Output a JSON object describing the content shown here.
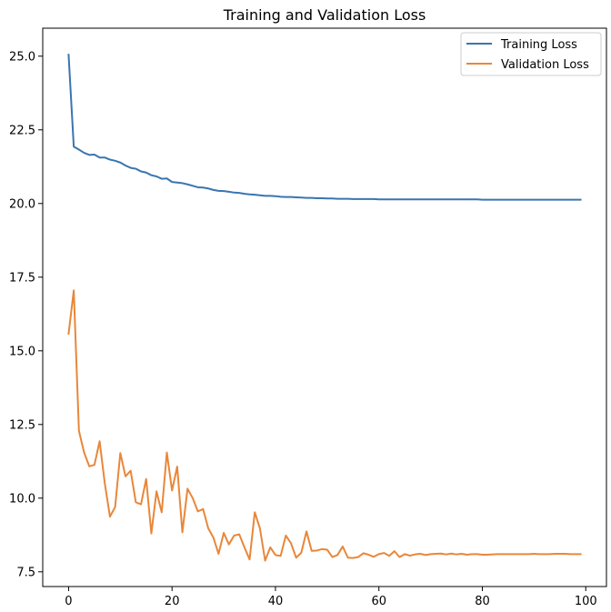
{
  "chart_data": {
    "type": "line",
    "title": "Training and Validation Loss",
    "xlabel": "",
    "ylabel": "",
    "xlim": [
      -5,
      104
    ],
    "ylim": [
      7.0,
      25.95
    ],
    "x_ticks": [
      0,
      20,
      40,
      60,
      80,
      100
    ],
    "y_ticks": [
      7.5,
      10.0,
      12.5,
      15.0,
      17.5,
      20.0,
      22.5,
      25.0
    ],
    "x_tick_labels": [
      "0",
      "20",
      "40",
      "60",
      "80",
      "100"
    ],
    "y_tick_labels": [
      "7.5",
      "10.0",
      "12.5",
      "15.0",
      "17.5",
      "20.0",
      "22.5",
      "25.0"
    ],
    "grid": false,
    "legend_position": "top-right",
    "x": [
      0,
      1,
      2,
      3,
      4,
      5,
      6,
      7,
      8,
      9,
      10,
      11,
      12,
      13,
      14,
      15,
      16,
      17,
      18,
      19,
      20,
      21,
      22,
      23,
      24,
      25,
      26,
      27,
      28,
      29,
      30,
      31,
      32,
      33,
      34,
      35,
      36,
      37,
      38,
      39,
      40,
      41,
      42,
      43,
      44,
      45,
      46,
      47,
      48,
      49,
      50,
      51,
      52,
      53,
      54,
      55,
      56,
      57,
      58,
      59,
      60,
      61,
      62,
      63,
      64,
      65,
      66,
      67,
      68,
      69,
      70,
      71,
      72,
      73,
      74,
      75,
      76,
      77,
      78,
      79,
      80,
      81,
      82,
      83,
      84,
      85,
      86,
      87,
      88,
      89,
      90,
      91,
      92,
      93,
      94,
      95,
      96,
      97,
      98,
      99
    ],
    "series": [
      {
        "name": "Training Loss",
        "color": "#3a75af",
        "values": [
          25.05,
          21.93,
          21.83,
          21.72,
          21.65,
          21.66,
          21.56,
          21.56,
          21.49,
          21.45,
          21.39,
          21.29,
          21.21,
          21.18,
          21.09,
          21.05,
          20.96,
          20.92,
          20.84,
          20.85,
          20.73,
          20.71,
          20.69,
          20.65,
          20.6,
          20.55,
          20.54,
          20.51,
          20.46,
          20.43,
          20.42,
          20.4,
          20.37,
          20.36,
          20.33,
          20.31,
          20.3,
          20.28,
          20.26,
          20.26,
          20.25,
          20.23,
          20.22,
          20.22,
          20.21,
          20.2,
          20.19,
          20.19,
          20.18,
          20.18,
          20.17,
          20.17,
          20.16,
          20.16,
          20.16,
          20.15,
          20.15,
          20.15,
          20.15,
          20.15,
          20.14,
          20.14,
          20.14,
          20.14,
          20.14,
          20.14,
          20.14,
          20.14,
          20.14,
          20.14,
          20.14,
          20.14,
          20.14,
          20.14,
          20.14,
          20.14,
          20.14,
          20.14,
          20.14,
          20.14,
          20.13,
          20.13,
          20.13,
          20.13,
          20.13,
          20.13,
          20.13,
          20.13,
          20.13,
          20.13,
          20.13,
          20.13,
          20.13,
          20.13,
          20.13,
          20.13,
          20.13,
          20.13,
          20.13,
          20.13
        ]
      },
      {
        "name": "Validation Loss",
        "color": "#e8873a",
        "values": [
          15.58,
          17.05,
          12.28,
          11.55,
          11.08,
          11.13,
          11.93,
          10.5,
          9.37,
          9.7,
          11.53,
          10.74,
          10.93,
          9.86,
          9.79,
          10.65,
          8.8,
          10.23,
          9.52,
          11.55,
          10.26,
          11.07,
          8.84,
          10.32,
          10.0,
          9.55,
          9.63,
          8.98,
          8.66,
          8.11,
          8.82,
          8.43,
          8.73,
          8.77,
          8.33,
          7.92,
          9.52,
          8.97,
          7.88,
          8.33,
          8.07,
          8.04,
          8.73,
          8.47,
          7.98,
          8.15,
          8.87,
          8.21,
          8.22,
          8.27,
          8.25,
          8.0,
          8.07,
          8.36,
          7.98,
          7.97,
          8.0,
          8.13,
          8.08,
          8.01,
          8.1,
          8.14,
          8.04,
          8.2,
          8.0,
          8.1,
          8.05,
          8.09,
          8.11,
          8.07,
          8.1,
          8.11,
          8.12,
          8.09,
          8.12,
          8.09,
          8.11,
          8.08,
          8.1,
          8.1,
          8.08,
          8.08,
          8.09,
          8.1,
          8.1,
          8.1,
          8.1,
          8.1,
          8.1,
          8.1,
          8.11,
          8.1,
          8.1,
          8.1,
          8.11,
          8.11,
          8.11,
          8.1,
          8.1,
          8.1
        ]
      }
    ]
  }
}
